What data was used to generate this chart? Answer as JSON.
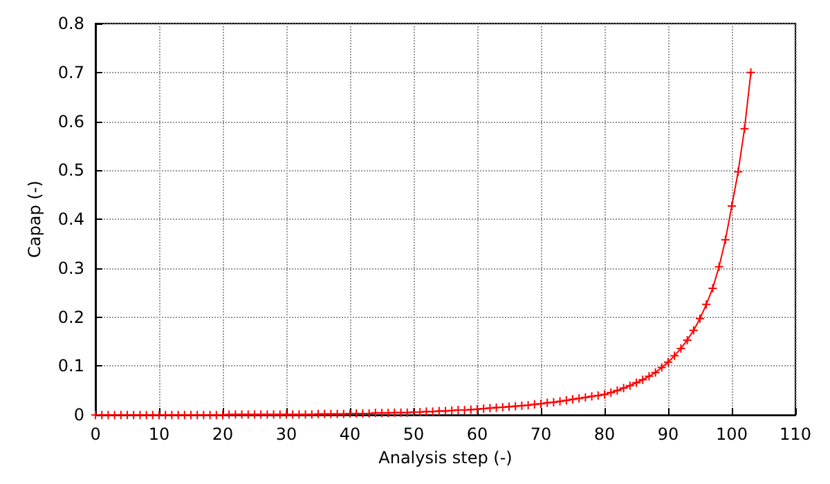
{
  "chart_data": {
    "type": "line",
    "xlabel": "Analysis step (-)",
    "ylabel": "Capap (-)",
    "x": [
      0,
      1,
      2,
      3,
      4,
      5,
      6,
      7,
      8,
      9,
      10,
      11,
      12,
      13,
      14,
      15,
      16,
      17,
      18,
      19,
      20,
      21,
      22,
      23,
      24,
      25,
      26,
      27,
      28,
      29,
      30,
      31,
      32,
      33,
      34,
      35,
      36,
      37,
      38,
      39,
      40,
      41,
      42,
      43,
      44,
      45,
      46,
      47,
      48,
      49,
      50,
      51,
      52,
      53,
      54,
      55,
      56,
      57,
      58,
      59,
      60,
      61,
      62,
      63,
      64,
      65,
      66,
      67,
      68,
      69,
      70,
      71,
      72,
      73,
      74,
      75,
      76,
      77,
      78,
      79,
      80,
      81,
      82,
      83,
      84,
      85,
      86,
      87,
      88,
      89,
      90,
      91,
      92,
      93,
      94,
      95,
      96,
      97,
      98,
      99,
      100,
      101,
      102,
      103
    ],
    "series": [
      {
        "color": "#ff0000",
        "values": [
          0,
          0,
          0,
          0,
          0,
          0,
          0,
          0,
          0,
          0,
          0,
          0,
          0,
          0,
          0,
          0,
          0,
          0,
          0,
          0,
          0,
          0.001,
          0.001,
          0.001,
          0.001,
          0.001,
          0.001,
          0.001,
          0.001,
          0.001,
          0.001,
          0.001,
          0.001,
          0.001,
          0.001,
          0.002,
          0.002,
          0.002,
          0.002,
          0.002,
          0.003,
          0.003,
          0.003,
          0.003,
          0.004,
          0.004,
          0.004,
          0.005,
          0.005,
          0.005,
          0.006,
          0.006,
          0.007,
          0.007,
          0.008,
          0.008,
          0.009,
          0.01,
          0.01,
          0.011,
          0.012,
          0.013,
          0.014,
          0.015,
          0.016,
          0.017,
          0.018,
          0.019,
          0.02,
          0.022,
          0.023,
          0.025,
          0.026,
          0.028,
          0.03,
          0.032,
          0.034,
          0.036,
          0.038,
          0.04,
          0.042,
          0.046,
          0.05,
          0.055,
          0.06,
          0.066,
          0.072,
          0.079,
          0.087,
          0.097,
          0.108,
          0.121,
          0.136,
          0.153,
          0.173,
          0.197,
          0.226,
          0.259,
          0.303,
          0.358,
          0.427,
          0.497,
          0.585,
          0.7
        ]
      }
    ],
    "xlim": [
      0,
      110
    ],
    "xticks": [
      0,
      10,
      20,
      30,
      40,
      50,
      60,
      70,
      80,
      90,
      100,
      110
    ],
    "ylim": [
      0,
      0.8
    ],
    "yticks": [
      0,
      0.1,
      0.2,
      0.3,
      0.4,
      0.5,
      0.6,
      0.7,
      0.8
    ],
    "grid": true,
    "marker": "cross",
    "line_style": "solid"
  }
}
